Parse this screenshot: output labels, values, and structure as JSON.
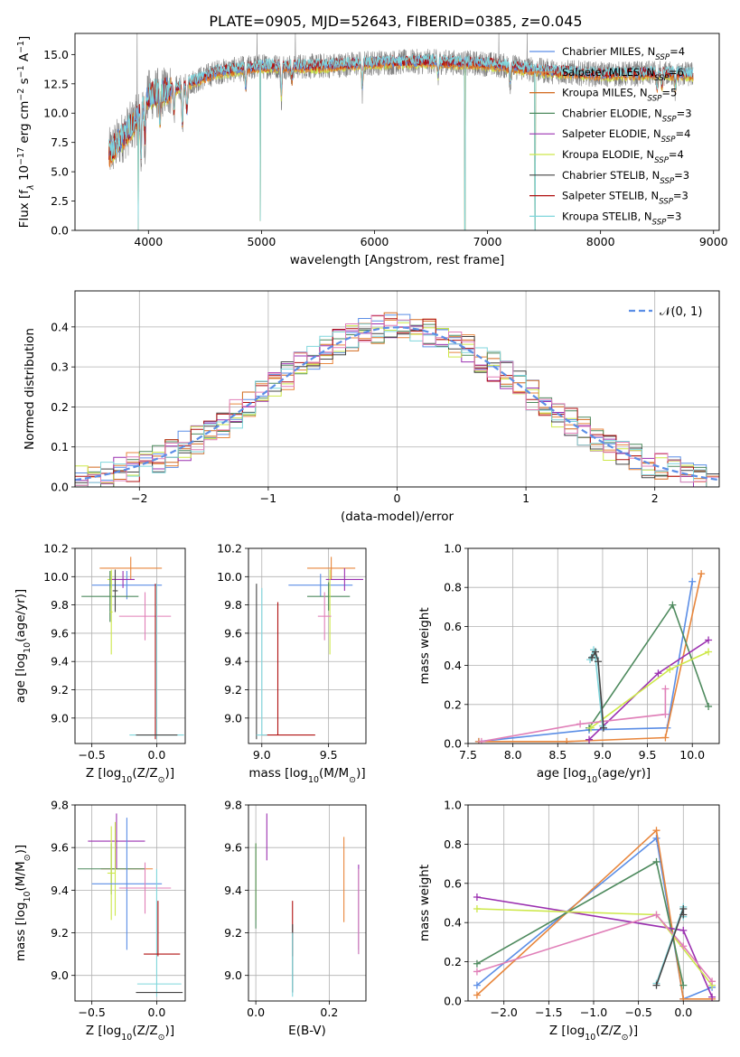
{
  "figure_title": "PLATE=0905, MJD=52643, FIBERID=0385, z=0.045",
  "colors": {
    "chabrier_miles": "#5b8ee6",
    "salpeter_miles": "#e8863c",
    "kroupa_miles": "#d2691e",
    "chabrier_elodie": "#4e8a5e",
    "salpeter_elodie": "#9b30b0",
    "kroupa_elodie": "#cde84a",
    "chabrier_stelib": "#444444",
    "salpeter_stelib": "#b01010",
    "kroupa_stelib": "#7fd6dc",
    "extra_pink": "#e07fb8",
    "data_gray": "#808080",
    "normal_curve": "#5b8ee6",
    "grid": "#b0b0b0"
  },
  "chart_data": [
    {
      "id": "spectrum",
      "type": "line",
      "title": "PLATE=0905, MJD=52643, FIBERID=0385, z=0.045",
      "xlabel": "wavelength [Angstrom, rest frame]",
      "ylabel": "Flux [f_λ 10^-17 erg cm^-2 s^-1 A^-1]",
      "xlim": [
        3350,
        9050
      ],
      "ylim": [
        0,
        16.8
      ],
      "xticks": [
        4000,
        5000,
        6000,
        7000,
        8000,
        9000
      ],
      "yticks": [
        0.0,
        2.5,
        5.0,
        7.5,
        10.0,
        12.5,
        15.0
      ],
      "grid": false,
      "legend_position": "top-right",
      "legend": [
        {
          "label": "Chabrier MILES, N_SSP=4",
          "color_key": "chabrier_miles"
        },
        {
          "label": "Salpeter MILES, N_SSP=6",
          "color_key": "salpeter_miles"
        },
        {
          "label": "Kroupa MILES, N_SSP=5",
          "color_key": "kroupa_miles"
        },
        {
          "label": "Chabrier ELODIE, N_SSP=3",
          "color_key": "chabrier_elodie"
        },
        {
          "label": "Salpeter ELODIE, N_SSP=4",
          "color_key": "salpeter_elodie"
        },
        {
          "label": "Kroupa ELODIE, N_SSP=4",
          "color_key": "kroupa_elodie"
        },
        {
          "label": "Chabrier STELIB, N_SSP=3",
          "color_key": "chabrier_stelib"
        },
        {
          "label": "Salpeter STELIB, N_SSP=3",
          "color_key": "salpeter_stelib"
        },
        {
          "label": "Kroupa STELIB, N_SSP=3",
          "color_key": "kroupa_stelib"
        }
      ],
      "data_x_range": [
        3650,
        8820
      ],
      "continuum": [
        [
          3650,
          6.5
        ],
        [
          3900,
          9.5
        ],
        [
          4000,
          11.5
        ],
        [
          4300,
          12.3
        ],
        [
          4600,
          13.5
        ],
        [
          5000,
          14.0
        ],
        [
          5500,
          14.0
        ],
        [
          6000,
          14.3
        ],
        [
          6500,
          14.4
        ],
        [
          7000,
          14.2
        ],
        [
          7500,
          13.6
        ],
        [
          8000,
          13.3
        ],
        [
          8500,
          13.4
        ],
        [
          8820,
          13.3
        ]
      ],
      "absorption_dips": [
        [
          3934,
          4.0
        ],
        [
          3969,
          3.5
        ],
        [
          4102,
          3.0
        ],
        [
          4226,
          2.5
        ],
        [
          4300,
          4.0
        ],
        [
          4340,
          3.0
        ],
        [
          4861,
          2.0
        ],
        [
          5175,
          3.0
        ],
        [
          5270,
          1.5
        ],
        [
          5892,
          2.5
        ],
        [
          6563,
          1.5
        ],
        [
          7200,
          1.5
        ],
        [
          8500,
          1.5
        ],
        [
          8542,
          1.5
        ],
        [
          8662,
          1.5
        ]
      ],
      "artifact_spikes_data": [
        [
          3900,
          16.8
        ],
        [
          4960,
          16.8
        ],
        [
          5300,
          16.8
        ],
        [
          7100,
          16.8
        ],
        [
          7350,
          16.8
        ]
      ],
      "artifact_drops_model": [
        [
          3910,
          0
        ],
        [
          4990,
          0.8
        ],
        [
          6800,
          0
        ],
        [
          7420,
          0
        ]
      ]
    },
    {
      "id": "residual-histogram",
      "type": "line",
      "xlabel": "(data-model)/error",
      "ylabel": "Normed distribution",
      "xlim": [
        -2.5,
        2.5
      ],
      "ylim": [
        0,
        0.49
      ],
      "xticks": [
        -2,
        -1,
        0,
        1,
        2
      ],
      "yticks": [
        0.0,
        0.1,
        0.2,
        0.3,
        0.4
      ],
      "grid": true,
      "legend_position": "top-right",
      "legend": [
        {
          "label": "𝒩(0, 1)",
          "color_key": "normal_curve"
        }
      ],
      "bin_width": 0.1,
      "bin_start": -2.5,
      "series_color_keys": [
        "chabrier_miles",
        "salpeter_miles",
        "kroupa_miles",
        "chabrier_elodie",
        "salpeter_elodie",
        "kroupa_elodie",
        "chabrier_stelib",
        "salpeter_stelib",
        "kroupa_stelib",
        "extra_pink"
      ]
    },
    {
      "id": "age-vs-Z",
      "type": "scatter",
      "xlabel": "Z [log10(Z/Z⊙)]",
      "ylabel": "age  [log10(age/yr)]",
      "xlim": [
        -0.63,
        0.22
      ],
      "ylim": [
        8.82,
        10.2
      ],
      "xticks": [
        -0.5,
        0.0
      ],
      "xticklabels": [
        "−0.5",
        "0.0"
      ],
      "yticks": [
        9.0,
        9.2,
        9.4,
        9.6,
        9.8,
        10.0,
        10.2
      ],
      "grid": true,
      "errorbars": [
        {
          "x": -0.2,
          "y": 10.06,
          "xerr": 0.24,
          "yerr": 0.08,
          "color_key": "salpeter_miles"
        },
        {
          "x": -0.35,
          "y": 9.98,
          "xerr": 0.03,
          "yerr": 0.06,
          "color_key": "kroupa_elodie"
        },
        {
          "x": -0.23,
          "y": 9.94,
          "xerr": 0.27,
          "yerr": 0.1,
          "color_key": "chabrier_miles"
        },
        {
          "x": -0.26,
          "y": 9.98,
          "xerr": 0.09,
          "yerr": 0.06,
          "color_key": "salpeter_elodie"
        },
        {
          "x": -0.36,
          "y": 9.86,
          "xerr": 0.22,
          "yerr": 0.18,
          "color_key": "chabrier_elodie"
        },
        {
          "x": -0.32,
          "y": 9.9,
          "xerr": 0.02,
          "yerr": 0.15,
          "color_key": "chabrier_stelib"
        },
        {
          "x": -0.35,
          "y": 9.75,
          "xerr": 0.01,
          "yerr": 0.3,
          "color_key": "kroupa_elodie"
        },
        {
          "x": -0.09,
          "y": 9.72,
          "xerr": 0.2,
          "yerr": 0.17,
          "color_key": "extra_pink"
        },
        {
          "x": -0.01,
          "y": 9.4,
          "xerr": 0.0,
          "yerr": 0.55,
          "color_key": "salpeter_stelib"
        },
        {
          "x": 0.0,
          "y": 9.4,
          "xerr": 0.0,
          "yerr": 0.55,
          "color_key": "kroupa_stelib"
        },
        {
          "x": 0.0,
          "y": 8.88,
          "xerr": 0.21,
          "yerr": 0.0,
          "color_key": "kroupa_stelib"
        },
        {
          "x": 0.0,
          "y": 8.88,
          "xerr": 0.16,
          "yerr": 0.0,
          "color_key": "chabrier_stelib"
        }
      ]
    },
    {
      "id": "age-vs-mass",
      "type": "scatter",
      "xlabel": "mass [log10(M/M⊙)]",
      "ylabel": "",
      "xlim": [
        8.9,
        9.78
      ],
      "ylim": [
        8.82,
        10.2
      ],
      "xticks": [
        9.0,
        9.5
      ],
      "yticks": [
        9.0,
        9.2,
        9.4,
        9.6,
        9.8,
        10.0,
        10.2
      ],
      "grid": true,
      "errorbars": [
        {
          "x": 9.52,
          "y": 10.06,
          "xerr": 0.18,
          "yerr": 0.08,
          "color_key": "salpeter_miles"
        },
        {
          "x": 9.44,
          "y": 9.94,
          "xerr": 0.24,
          "yerr": 0.08,
          "color_key": "chabrier_miles"
        },
        {
          "x": 9.62,
          "y": 9.98,
          "xerr": 0.14,
          "yerr": 0.08,
          "color_key": "salpeter_elodie"
        },
        {
          "x": 9.5,
          "y": 9.86,
          "xerr": 0.16,
          "yerr": 0.1,
          "color_key": "chabrier_elodie"
        },
        {
          "x": 9.51,
          "y": 9.75,
          "xerr": 0.0,
          "yerr": 0.3,
          "color_key": "kroupa_elodie"
        },
        {
          "x": 9.47,
          "y": 9.72,
          "xerr": 0.05,
          "yerr": 0.17,
          "color_key": "extra_pink"
        },
        {
          "x": 9.12,
          "y": 9.35,
          "xerr": 0.0,
          "yerr": 0.47,
          "color_key": "salpeter_stelib"
        },
        {
          "x": 9.2,
          "y": 8.88,
          "xerr": 0.2,
          "yerr": 0.0,
          "color_key": "salpeter_stelib"
        },
        {
          "x": 8.96,
          "y": 9.4,
          "xerr": 0.0,
          "yerr": 0.55,
          "color_key": "chabrier_stelib"
        },
        {
          "x": 9.0,
          "y": 9.4,
          "xerr": 0.0,
          "yerr": 0.52,
          "color_key": "kroupa_stelib"
        },
        {
          "x": 9.0,
          "y": 8.88,
          "xerr": 0.04,
          "yerr": 0.0,
          "color_key": "kroupa_stelib"
        }
      ]
    },
    {
      "id": "massweight-vs-age",
      "type": "line",
      "xlabel": "age  [log10(age/yr)]",
      "ylabel": "mass weight",
      "xlim": [
        7.5,
        10.3
      ],
      "ylim": [
        0,
        1.0
      ],
      "xticks": [
        7.5,
        8.0,
        8.5,
        9.0,
        9.5,
        10.0
      ],
      "yticks": [
        0.0,
        0.2,
        0.4,
        0.6,
        0.8,
        1.0
      ],
      "grid": true,
      "series": [
        {
          "color_key": "chabrier_miles",
          "x": [
            7.62,
            8.85,
            9.72,
            10.0
          ],
          "y": [
            0.01,
            0.07,
            0.08,
            0.83
          ]
        },
        {
          "color_key": "salpeter_miles",
          "x": [
            7.62,
            8.6,
            9.7,
            10.1
          ],
          "y": [
            0.01,
            0.01,
            0.03,
            0.87
          ]
        },
        {
          "color_key": "chabrier_elodie",
          "x": [
            8.85,
            9.78,
            10.18
          ],
          "y": [
            0.08,
            0.71,
            0.19
          ]
        },
        {
          "color_key": "salpeter_elodie",
          "x": [
            8.85,
            9.62,
            10.18
          ],
          "y": [
            0.02,
            0.36,
            0.53
          ]
        },
        {
          "color_key": "kroupa_elodie",
          "x": [
            8.87,
            9.75,
            10.18
          ],
          "y": [
            0.08,
            0.38,
            0.47
          ]
        },
        {
          "color_key": "extra_pink",
          "x": [
            7.65,
            8.75,
            9.7,
            9.7
          ],
          "y": [
            0.01,
            0.1,
            0.15,
            0.28
          ]
        },
        {
          "color_key": "kroupa_stelib",
          "x": [
            8.86,
            8.9,
            8.92,
            9.0
          ],
          "y": [
            0.43,
            0.48,
            0.44,
            0.09
          ]
        },
        {
          "color_key": "chabrier_stelib",
          "x": [
            8.88,
            8.92,
            8.95,
            9.01
          ],
          "y": [
            0.44,
            0.47,
            0.42,
            0.08
          ]
        }
      ]
    },
    {
      "id": "mass-vs-Z",
      "type": "scatter",
      "xlabel": "Z [log10(Z/Z⊙)]",
      "ylabel": "mass [log10(M/M⊙)]",
      "xlim": [
        -0.63,
        0.22
      ],
      "ylim": [
        8.88,
        9.8
      ],
      "xticks": [
        -0.5,
        0.0
      ],
      "xticklabels": [
        "−0.5",
        "0.0"
      ],
      "yticks": [
        9.0,
        9.2,
        9.4,
        9.6,
        9.8
      ],
      "grid": true,
      "errorbars": [
        {
          "x": -0.31,
          "y": 9.63,
          "xerr": 0.22,
          "yerr": 0.13,
          "color_key": "salpeter_elodie"
        },
        {
          "x": -0.23,
          "y": 9.5,
          "xerr": 0.2,
          "yerr": 0.0,
          "color_key": "salpeter_miles"
        },
        {
          "x": -0.35,
          "y": 9.5,
          "xerr": 0.26,
          "yerr": 0.12,
          "color_key": "chabrier_elodie"
        },
        {
          "x": -0.32,
          "y": 9.5,
          "xerr": 0.0,
          "yerr": 0.22,
          "color_key": "kroupa_elodie"
        },
        {
          "x": -0.35,
          "y": 9.48,
          "xerr": 0.03,
          "yerr": 0.22,
          "color_key": "kroupa_elodie"
        },
        {
          "x": -0.23,
          "y": 9.43,
          "xerr": 0.27,
          "yerr": 0.31,
          "color_key": "chabrier_miles"
        },
        {
          "x": -0.09,
          "y": 9.41,
          "xerr": 0.2,
          "yerr": 0.12,
          "color_key": "extra_pink"
        },
        {
          "x": 0.0,
          "y": 9.2,
          "xerr": 0.0,
          "yerr": 0.3,
          "color_key": "kroupa_stelib"
        },
        {
          "x": 0.01,
          "y": 9.22,
          "xerr": 0.0,
          "yerr": 0.13,
          "color_key": "salpeter_stelib"
        },
        {
          "x": 0.04,
          "y": 9.1,
          "xerr": 0.14,
          "yerr": 0.0,
          "color_key": "salpeter_stelib"
        },
        {
          "x": 0.02,
          "y": 8.96,
          "xerr": 0.17,
          "yerr": 0.0,
          "color_key": "kroupa_stelib"
        },
        {
          "x": 0.02,
          "y": 8.92,
          "xerr": 0.18,
          "yerr": 0.0,
          "color_key": "chabrier_stelib"
        }
      ]
    },
    {
      "id": "mass-vs-EBV",
      "type": "scatter",
      "xlabel": "E(B-V)",
      "ylabel": "",
      "xlim": [
        -0.02,
        0.3
      ],
      "ylim": [
        8.88,
        9.8
      ],
      "xticks": [
        0.0,
        0.2
      ],
      "yticks": [
        9.0,
        9.2,
        9.4,
        9.6,
        9.8
      ],
      "grid": true,
      "errorbars": [
        {
          "x": 0.03,
          "y": 9.65,
          "xerr": 0,
          "yerr": 0.11,
          "color_key": "salpeter_elodie"
        },
        {
          "x": 0.0,
          "y": 9.44,
          "xerr": 0,
          "yerr": 0.18,
          "color_key": "kroupa_elodie"
        },
        {
          "x": 0.0,
          "y": 9.42,
          "xerr": 0,
          "yerr": 0.2,
          "color_key": "chabrier_elodie"
        },
        {
          "x": 0.24,
          "y": 9.45,
          "xerr": 0,
          "yerr": 0.2,
          "color_key": "salpeter_miles"
        },
        {
          "x": 0.28,
          "y": 9.32,
          "xerr": 0,
          "yerr": 0.2,
          "color_key": "salpeter_elodie"
        },
        {
          "x": 0.28,
          "y": 9.3,
          "xerr": 0,
          "yerr": 0.2,
          "color_key": "chabrier_miles"
        },
        {
          "x": 0.28,
          "y": 9.3,
          "xerr": 0,
          "yerr": 0.2,
          "color_key": "extra_pink"
        },
        {
          "x": 0.1,
          "y": 9.22,
          "xerr": 0,
          "yerr": 0.13,
          "color_key": "salpeter_stelib"
        },
        {
          "x": 0.1,
          "y": 9.08,
          "xerr": 0,
          "yerr": 0.16,
          "color_key": "chabrier_stelib"
        },
        {
          "x": 0.1,
          "y": 9.05,
          "xerr": 0,
          "yerr": 0.15,
          "color_key": "kroupa_stelib"
        }
      ]
    },
    {
      "id": "massweight-vs-Z",
      "type": "line",
      "xlabel": "Z [log10(Z/Z⊙)]",
      "ylabel": "mass weight",
      "xlim": [
        -2.4,
        0.4
      ],
      "ylim": [
        0,
        1.0
      ],
      "xticks": [
        -2.0,
        -1.5,
        -1.0,
        -0.5,
        0.0
      ],
      "xticklabels": [
        "−2.0",
        "−1.5",
        "−1.0",
        "−0.5",
        "0.0"
      ],
      "yticks": [
        0.0,
        0.2,
        0.4,
        0.6,
        0.8,
        1.0
      ],
      "grid": true,
      "series": [
        {
          "color_key": "chabrier_miles",
          "x": [
            -2.3,
            -0.3,
            0.0,
            0.32
          ],
          "y": [
            0.08,
            0.83,
            0.01,
            0.07
          ]
        },
        {
          "color_key": "salpeter_miles",
          "x": [
            -2.3,
            -0.3,
            0.0,
            0.32
          ],
          "y": [
            0.03,
            0.87,
            0.01,
            0.01
          ]
        },
        {
          "color_key": "chabrier_elodie",
          "x": [
            -2.3,
            -0.3,
            0.0
          ],
          "y": [
            0.19,
            0.71,
            0.08
          ]
        },
        {
          "color_key": "salpeter_elodie",
          "x": [
            -2.3,
            0.0,
            0.32
          ],
          "y": [
            0.53,
            0.36,
            0.02
          ]
        },
        {
          "color_key": "kroupa_elodie",
          "x": [
            -2.3,
            -0.3,
            0.32
          ],
          "y": [
            0.47,
            0.44,
            0.08
          ]
        },
        {
          "color_key": "extra_pink",
          "x": [
            -2.3,
            -0.3,
            0.0,
            0.32
          ],
          "y": [
            0.15,
            0.44,
            0.28,
            0.1
          ]
        },
        {
          "color_key": "kroupa_stelib",
          "x": [
            -0.3,
            0.0,
            0.0
          ],
          "y": [
            0.09,
            0.48,
            0.43
          ]
        },
        {
          "color_key": "chabrier_stelib",
          "x": [
            -0.3,
            0.0,
            0.0
          ],
          "y": [
            0.08,
            0.47,
            0.44
          ]
        }
      ]
    }
  ]
}
